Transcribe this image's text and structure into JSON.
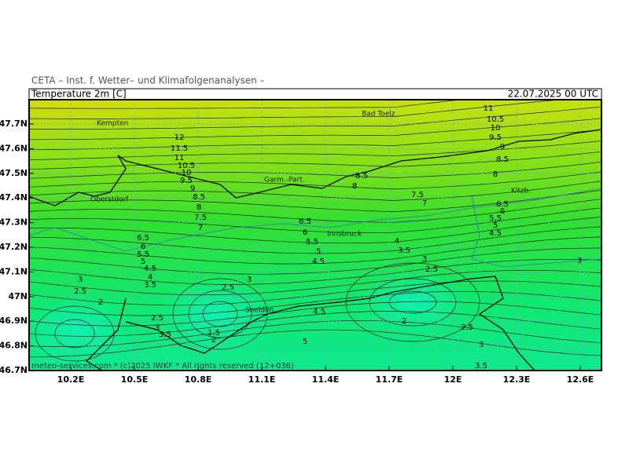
{
  "header": {
    "institute": "CETA – Inst. f. Wetter– und Klimafolgenanalysen –",
    "field": "Temperature 2m [C]",
    "valid": "22.07.2025 00 UTC"
  },
  "lat_labels": [
    "47.7N",
    "47.6N",
    "47.5N",
    "47.4N",
    "47.3N",
    "47.2N",
    "47.1N",
    "47N",
    "46.9N",
    "46.8N",
    "46.7N"
  ],
  "lon_labels": [
    "10.2E",
    "10.5E",
    "10.8E",
    "11.1E",
    "11.4E",
    "11.7E",
    "12E",
    "12.3E",
    "12.6E"
  ],
  "places": [
    "Kempten",
    "Bad Toelz",
    "Garm.-Part.",
    "Oberstdorf",
    "Innsbruck",
    "Kitzb.",
    "Soelden"
  ],
  "contour_labels": [
    "12",
    "11.5",
    "11",
    "10.5",
    "10",
    "9.5",
    "9",
    "8.5",
    "8",
    "7.5",
    "7",
    "6.5",
    "6",
    "5.5",
    "5",
    "4.5",
    "6.5",
    "6",
    "5.5",
    "5",
    "4.5",
    "4",
    "3.5",
    "3",
    "2.5",
    "2",
    "2.5",
    "3",
    "3.5",
    "2.5",
    "3",
    "1.5",
    "2",
    "4.5",
    "5",
    "8.5",
    "8",
    "7.5",
    "7",
    "4",
    "3.5",
    "3",
    "2.5",
    "2",
    "2.5",
    "3",
    "3.5",
    "11",
    "10.5",
    "10",
    "9.5",
    "9",
    "8.5",
    "8",
    "6.5",
    "6",
    "5.5",
    "5",
    "4.5",
    "3"
  ],
  "footer": "meteo-services.com * (c)2025 IWKF * All rights reserved (12+036)"
}
